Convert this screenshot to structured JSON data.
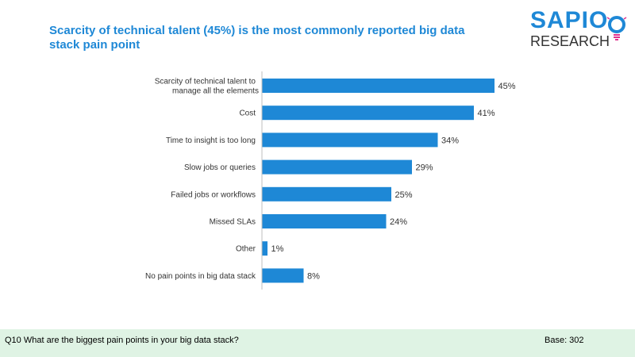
{
  "header": {
    "title": "Scarcity of technical talent (45%) is the most commonly reported big data stack pain point"
  },
  "logo": {
    "top": "SAPIO",
    "bottom": "RESEARCH",
    "brand_color": "#1e88d6"
  },
  "footer": {
    "question": "Q10 What are the biggest pain points in your big data stack?",
    "base": "Base: 302",
    "background": "#dff3e4"
  },
  "chart_data": {
    "type": "bar",
    "orientation": "horizontal",
    "categories": [
      "Scarcity of technical talent to manage all the elements",
      "Cost",
      "Time to insight is too long",
      "Slow jobs or queries",
      "Failed jobs or workflows",
      "Missed SLAs",
      "Other",
      "No pain points in big data stack"
    ],
    "values": [
      45,
      41,
      34,
      29,
      25,
      24,
      1,
      8
    ],
    "data_labels": [
      "45%",
      "41%",
      "34%",
      "29%",
      "25%",
      "24%",
      "1%",
      "8%"
    ],
    "xlim": [
      0,
      100
    ],
    "bar_color": "#1e88d6",
    "grid": false
  }
}
